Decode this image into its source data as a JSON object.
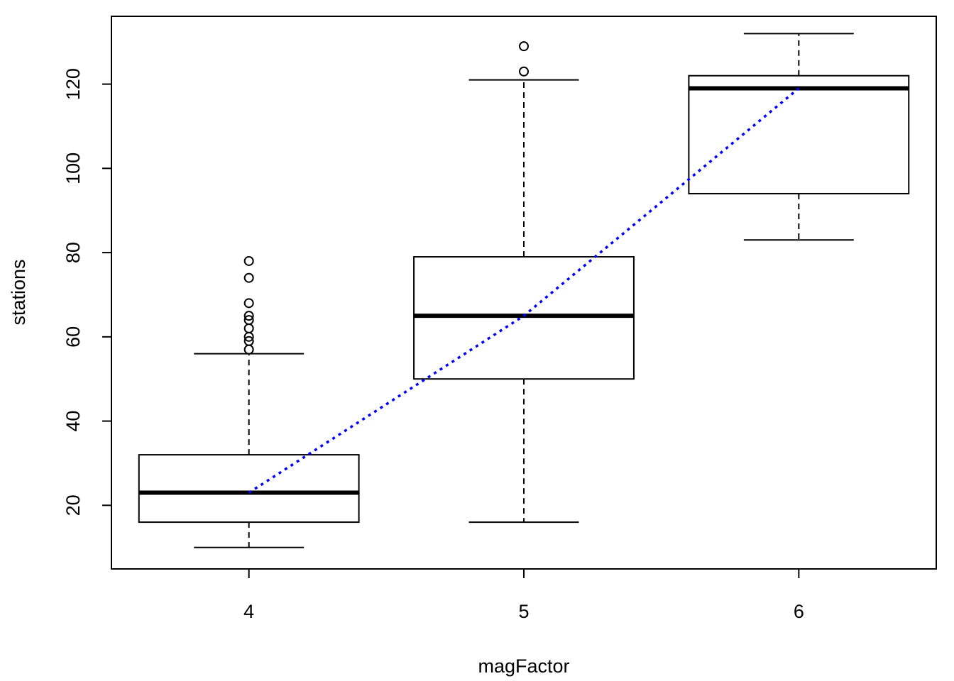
{
  "chart_data": {
    "type": "boxplot",
    "xlabel": "magFactor",
    "ylabel": "stations",
    "categories": [
      "4",
      "5",
      "6"
    ],
    "y_ticks": [
      20,
      40,
      60,
      80,
      100,
      120
    ],
    "ylim": [
      4.9,
      136.1
    ],
    "boxes": [
      {
        "category": "4",
        "whisker_low": 10,
        "q1": 16,
        "median": 23,
        "q3": 32,
        "whisker_high": 56,
        "outliers": [
          57,
          59,
          60,
          62,
          64,
          65,
          68,
          74,
          78
        ]
      },
      {
        "category": "5",
        "whisker_low": 16,
        "q1": 50,
        "median": 65,
        "q3": 79,
        "whisker_high": 121,
        "outliers": [
          123,
          129
        ]
      },
      {
        "category": "6",
        "whisker_low": 83,
        "q1": 94,
        "median": 119,
        "q3": 122,
        "whisker_high": 132,
        "outliers": []
      }
    ],
    "median_line": {
      "color": "#0000ff",
      "style": "dotted",
      "values": [
        23,
        65,
        119
      ]
    },
    "grid": false,
    "legend": "none"
  }
}
